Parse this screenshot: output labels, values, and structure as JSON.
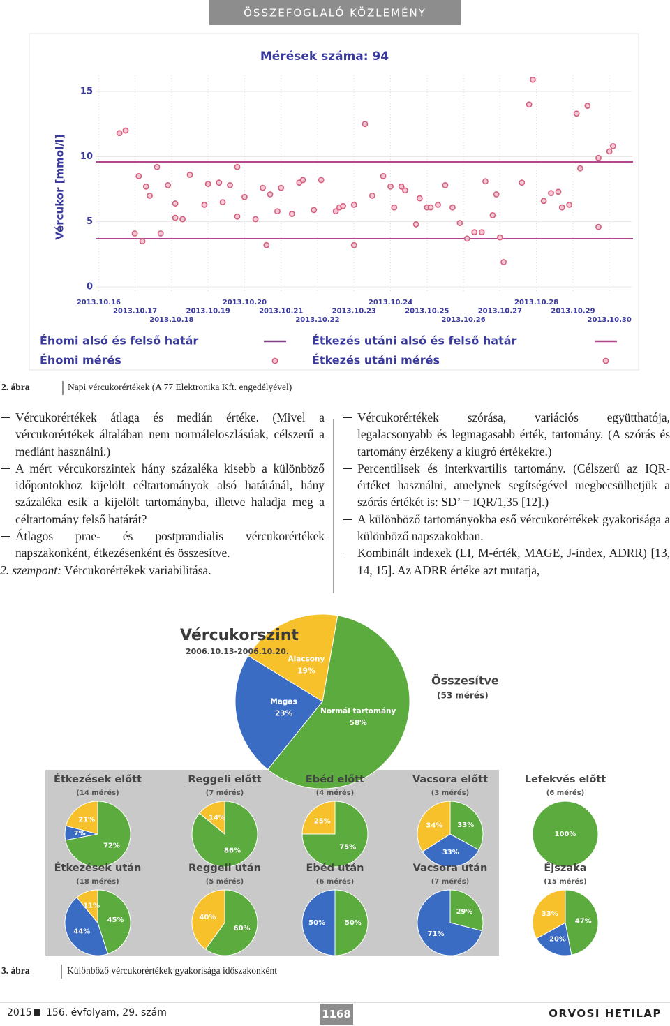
{
  "header": {
    "section": "ÖSSZEFOGLALÓ KÖZLEMÉNY"
  },
  "figure2": {
    "label": "2. ábra",
    "caption": "Napi vércukorértékek (A 77 Elektronika Kft. engedélyével)"
  },
  "left_column": [
    {
      "text": "Vércukorértékek átlaga és medián értéke. (Mivel a vércukorértékek általában nem normáleloszlásúak, célszerű a mediánt használni.)"
    },
    {
      "text": "A mért vércukorszintek hány százaléka kisebb a különböző időpontokhoz kijelölt céltartományok alsó határánál, hány százaléka esik a kijelölt tartományba, illetve haladja meg a céltartomány felső határát?"
    },
    {
      "text": "Átlagos prae- és postprandialis vércukorértékek napszakonként, étkezésenként és összesítve."
    },
    {
      "lead": "2. szempont:",
      "text": "Vércukorértékek variabilitása."
    }
  ],
  "right_column": [
    {
      "text": "Vércukorértékek szórása, variációs együtthatója, legalacsonyabb és legmagasabb érték, tartomány. (A szórás és tartomány érzékeny a kiugró értékekre.)"
    },
    {
      "text": "Percentilisek és interkvartilis tartomány. (Célszerű az IQR-értéket használni, amelynek segítségével megbecsülhetjük a szórás értékét is: SD’ = IQR/1,35 [12].)"
    },
    {
      "text": "A különböző tartományokba eső vércukorértékek gyakorisága a különböző napszakokban."
    },
    {
      "text": "Kombinált indexek (LI, M-érték, MAGE, J-index, ADRR) [13, 14, 15]. Az ADRR értéke azt mutatja,"
    }
  ],
  "figure3": {
    "label": "3. ábra",
    "caption": "Különböző vércukorértékek gyakorisága időszakonként"
  },
  "footer": {
    "year": "2015",
    "volume": "156. évfolyam, 29. szám",
    "page": "1168",
    "journal": "ORVOSI HETILAP"
  },
  "chart_data": [
    {
      "type": "scatter",
      "title": "Mérések száma: 94",
      "y_label": "Vércukor [mmol/l]",
      "xlim": [
        14.1,
        30.8
      ],
      "ylim": [
        0,
        17.2
      ],
      "yticks": [
        0,
        5,
        10,
        15
      ],
      "xticks": [
        {
          "value": 16,
          "label": "2013.10.16"
        },
        {
          "value": 17,
          "label": "2013.10.17"
        },
        {
          "value": 18,
          "label": "2013.10.18"
        },
        {
          "value": 19,
          "label": "2013.10.19"
        },
        {
          "value": 20,
          "label": "2013.10.20"
        },
        {
          "value": 21,
          "label": "2013.10.21"
        },
        {
          "value": 22,
          "label": "2013.10.22"
        },
        {
          "value": 23,
          "label": "2013.10.23"
        },
        {
          "value": 24,
          "label": "2013.10.24"
        },
        {
          "value": 25,
          "label": "2013.10.25"
        },
        {
          "value": 26,
          "label": "2013.10.26"
        },
        {
          "value": 27,
          "label": "2013.10.27"
        },
        {
          "value": 28,
          "label": "2013.10.28"
        },
        {
          "value": 29,
          "label": "2013.10.29"
        },
        {
          "value": 30,
          "label": "2013.10.30"
        }
      ],
      "limits": [
        {
          "name": "Éhomi alsó és felső határ",
          "color": "#8a3a8e",
          "values": [
            3.7,
            9.6
          ]
        },
        {
          "name": "Étkezés utáni alsó és felső határ",
          "color": "#b4448c",
          "values": [
            3.7,
            9.6
          ]
        }
      ],
      "series": [
        {
          "name": "Éhomi mérés",
          "color": "#d4607e",
          "x": [
            16.99,
            17.2,
            17.7,
            20.6,
            23.0,
            26.1,
            26.3,
            26.5,
            27.0,
            27.1
          ],
          "values": [
            4.1,
            3.5,
            4.1,
            3.2,
            3.2,
            3.7,
            4.2,
            4.2,
            3.8,
            1.9
          ]
        },
        {
          "name": "Étkezés utáni mérés",
          "color": "#d4607e",
          "x": [
            16.57,
            16.74,
            17.1,
            17.3,
            17.4,
            17.6,
            17.9,
            18.1,
            18.1,
            18.3,
            18.5,
            18.9,
            19.0,
            19.3,
            19.4,
            19.6,
            19.8,
            19.8,
            20.0,
            20.3,
            20.5,
            20.7,
            20.9,
            21.0,
            21.3,
            21.5,
            21.6,
            21.9,
            22.1,
            22.5,
            22.6,
            22.7,
            23.0,
            23.3,
            23.5,
            23.8,
            24.0,
            24.1,
            24.3,
            24.4,
            24.7,
            24.8,
            25.0,
            25.1,
            25.3,
            25.5,
            25.7,
            25.9,
            26.6,
            26.8,
            26.9,
            27.6,
            27.8,
            27.9,
            28.2,
            28.4,
            28.6,
            28.7,
            28.9,
            29.1,
            29.2,
            29.4,
            29.7,
            29.7,
            30.0,
            30.1
          ],
          "values": [
            11.8,
            12.0,
            8.5,
            7.7,
            7.0,
            9.2,
            7.8,
            6.4,
            5.3,
            5.2,
            8.6,
            6.3,
            7.9,
            8.0,
            6.5,
            7.8,
            5.4,
            9.2,
            6.9,
            5.2,
            7.6,
            7.1,
            5.8,
            7.6,
            5.6,
            8.0,
            8.2,
            5.9,
            8.2,
            5.8,
            6.1,
            6.2,
            6.3,
            12.5,
            7.0,
            8.5,
            7.7,
            6.1,
            7.7,
            7.4,
            4.8,
            6.8,
            6.1,
            6.1,
            6.3,
            7.8,
            6.1,
            4.9,
            8.1,
            5.5,
            7.1,
            8.0,
            14.0,
            15.9,
            6.6,
            7.2,
            7.3,
            6.1,
            6.3,
            13.3,
            9.1,
            13.9,
            9.9,
            4.6,
            10.4,
            10.8
          ]
        }
      ]
    },
    {
      "type": "pie",
      "title": "Vércukorszint",
      "subtitle": "2006.10.13-2006.10.20.",
      "note": "Összesítve",
      "count": "(53 mérés)",
      "categories": [
        "Normál tartomány",
        "Magas",
        "Alacsony"
      ],
      "values": [
        58,
        23,
        19
      ],
      "value_labels": [
        "58%",
        "23%",
        "19%"
      ],
      "colors": [
        "#5cab3e",
        "#3a6cc4",
        "#f6c12b"
      ]
    },
    {
      "type": "pie",
      "title": "Étkezések előtt",
      "subtitle": "(14 mérés)",
      "values": [
        72,
        7,
        21
      ],
      "value_labels": [
        "72%",
        "7%",
        "21%"
      ],
      "colors": [
        "#5cab3e",
        "#3a6cc4",
        "#f6c12b"
      ]
    },
    {
      "type": "pie",
      "title": "Reggeli előtt",
      "subtitle": "(7 mérés)",
      "values": [
        86,
        14
      ],
      "value_labels": [
        "86%",
        "14%"
      ],
      "colors": [
        "#5cab3e",
        "#f6c12b"
      ]
    },
    {
      "type": "pie",
      "title": "Ebéd előtt",
      "subtitle": "(4 mérés)",
      "values": [
        75,
        25
      ],
      "value_labels": [
        "75%",
        "25%"
      ],
      "colors": [
        "#5cab3e",
        "#f6c12b"
      ]
    },
    {
      "type": "pie",
      "title": "Vacsora előtt",
      "subtitle": "(3 mérés)",
      "values": [
        33,
        33,
        34
      ],
      "value_labels": [
        "33%",
        "33%",
        "34%"
      ],
      "colors": [
        "#5cab3e",
        "#3a6cc4",
        "#f6c12b"
      ]
    },
    {
      "type": "pie",
      "title": "Lefekvés előtt",
      "subtitle": "(6 mérés)",
      "values": [
        100
      ],
      "value_labels": [
        "100%"
      ],
      "colors": [
        "#5cab3e"
      ]
    },
    {
      "type": "pie",
      "title": "Étkezések után",
      "subtitle": "(18 mérés)",
      "values": [
        45,
        44,
        11
      ],
      "value_labels": [
        "45%",
        "44%",
        "11%"
      ],
      "colors": [
        "#5cab3e",
        "#3a6cc4",
        "#f6c12b"
      ]
    },
    {
      "type": "pie",
      "title": "Reggeli után",
      "subtitle": "(5 mérés)",
      "values": [
        60,
        40
      ],
      "value_labels": [
        "60%",
        "40%"
      ],
      "colors": [
        "#5cab3e",
        "#f6c12b"
      ]
    },
    {
      "type": "pie",
      "title": "Ebéd után",
      "subtitle": "(6 mérés)",
      "values": [
        50,
        50
      ],
      "value_labels": [
        "50%",
        "50%"
      ],
      "colors": [
        "#5cab3e",
        "#3a6cc4"
      ]
    },
    {
      "type": "pie",
      "title": "Vacsora után",
      "subtitle": "(7 mérés)",
      "values": [
        29,
        71
      ],
      "value_labels": [
        "29%",
        "71%"
      ],
      "colors": [
        "#5cab3e",
        "#3a6cc4"
      ]
    },
    {
      "type": "pie",
      "title": "Éjszaka",
      "subtitle": "(15 mérés)",
      "values": [
        47,
        20,
        33
      ],
      "value_labels": [
        "47%",
        "20%",
        "33%"
      ],
      "colors": [
        "#5cab3e",
        "#3a6cc4",
        "#f6c12b"
      ]
    }
  ]
}
